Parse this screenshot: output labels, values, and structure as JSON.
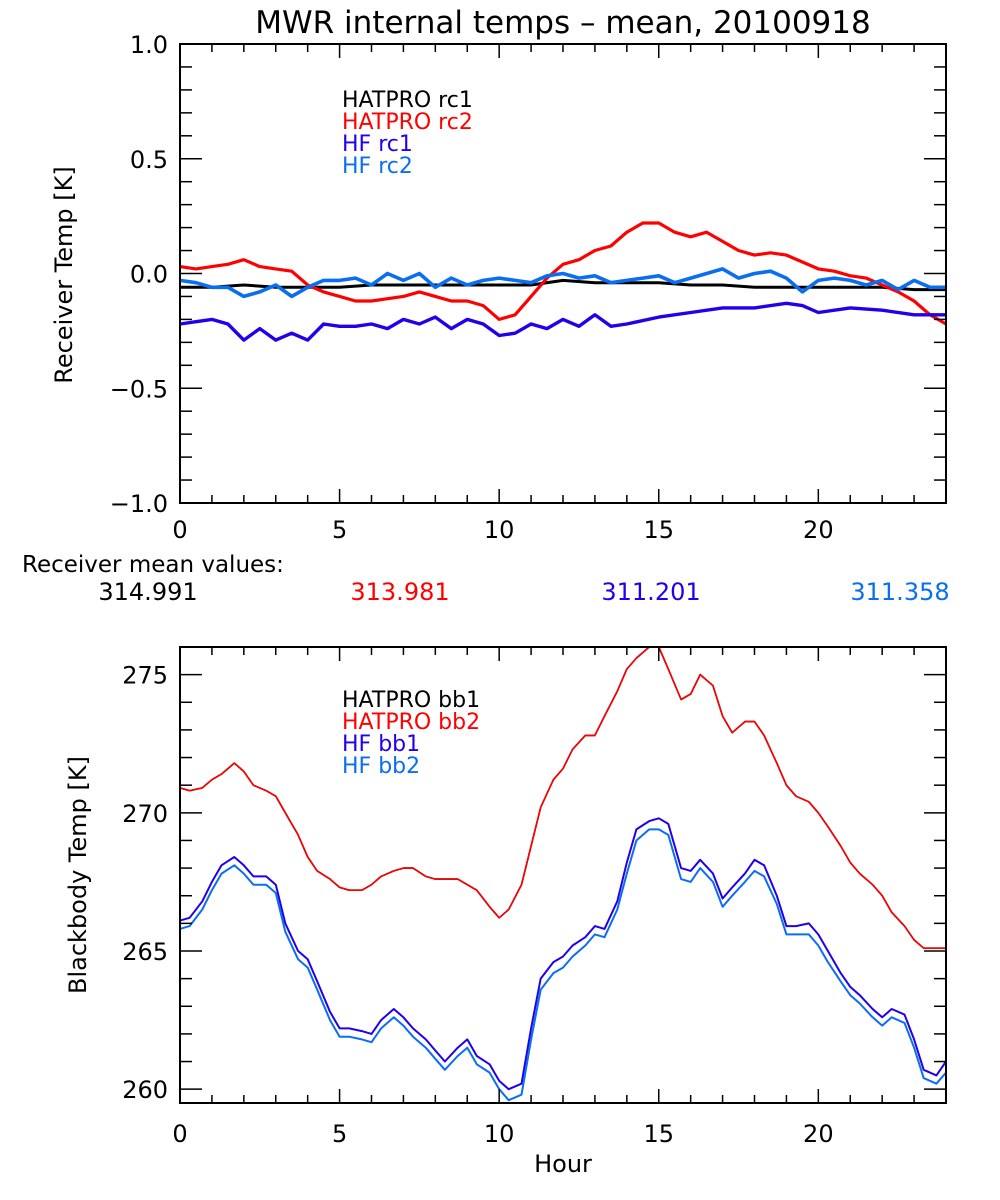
{
  "title": "MWR internal temps – mean, 20100918",
  "mean_values_label": "Receiver mean values:",
  "mean_values": [
    {
      "value": "314.991",
      "color": "#000000"
    },
    {
      "value": "313.981",
      "color": "#ff0000"
    },
    {
      "value": "311.201",
      "color": "#2200ee"
    },
    {
      "value": "311.358",
      "color": "#0a6ef0"
    }
  ],
  "chart_data": [
    {
      "type": "line",
      "title": "MWR internal temps – mean, 20100918",
      "xlabel": "",
      "ylabel": "Receiver Temp [K]",
      "xlim": [
        0,
        24
      ],
      "ylim": [
        -1.0,
        1.0
      ],
      "xticks": [
        0,
        5,
        10,
        15,
        20
      ],
      "xtick_labels": [
        "0",
        "5",
        "10",
        "15",
        "20"
      ],
      "yticks": [
        -1.0,
        -0.5,
        0.0,
        0.5,
        1.0
      ],
      "ytick_labels": [
        "−1.0",
        "−0.5",
        "0.0",
        "0.5",
        "1.0"
      ],
      "legend_position": "top-left",
      "grid": false,
      "series": [
        {
          "name": "HATPRO rc1",
          "color": "#000000",
          "x": [
            0,
            1,
            2,
            3,
            4,
            5,
            6,
            7,
            8,
            9,
            10,
            11,
            12,
            13,
            14,
            15,
            16,
            17,
            18,
            19,
            20,
            21,
            22,
            23,
            24
          ],
          "y": [
            -0.06,
            -0.06,
            -0.05,
            -0.06,
            -0.06,
            -0.06,
            -0.05,
            -0.05,
            -0.05,
            -0.05,
            -0.05,
            -0.05,
            -0.03,
            -0.04,
            -0.04,
            -0.04,
            -0.05,
            -0.05,
            -0.06,
            -0.06,
            -0.06,
            -0.06,
            -0.06,
            -0.07,
            -0.07
          ]
        },
        {
          "name": "HATPRO rc2",
          "color": "#ff0000",
          "x": [
            0,
            0.5,
            1,
            1.5,
            2,
            2.5,
            3,
            3.5,
            4,
            4.5,
            5,
            5.5,
            6,
            7,
            7.5,
            8,
            8.5,
            9,
            9.5,
            10,
            10.5,
            11,
            11.5,
            12,
            12.5,
            13,
            13.5,
            14,
            14.5,
            15,
            15.5,
            16,
            16.5,
            17,
            17.5,
            18,
            18.5,
            19,
            19.5,
            20,
            20.5,
            21,
            21.5,
            22,
            22.5,
            23,
            23.5,
            24
          ],
          "y": [
            0.03,
            0.02,
            0.03,
            0.04,
            0.06,
            0.03,
            0.02,
            0.01,
            -0.05,
            -0.08,
            -0.1,
            -0.12,
            -0.12,
            -0.1,
            -0.08,
            -0.1,
            -0.12,
            -0.12,
            -0.14,
            -0.2,
            -0.18,
            -0.1,
            -0.02,
            0.04,
            0.06,
            0.1,
            0.12,
            0.18,
            0.22,
            0.22,
            0.18,
            0.16,
            0.18,
            0.14,
            0.1,
            0.08,
            0.09,
            0.08,
            0.05,
            0.02,
            0.01,
            -0.01,
            -0.02,
            -0.05,
            -0.08,
            -0.12,
            -0.18,
            -0.22
          ]
        },
        {
          "name": "HF rc1",
          "color": "#2200ee",
          "x": [
            0,
            0.5,
            1,
            1.5,
            2,
            2.5,
            3,
            3.5,
            4,
            4.5,
            5,
            5.5,
            6,
            6.5,
            7,
            7.5,
            8,
            8.5,
            9,
            9.5,
            10,
            10.5,
            11,
            11.5,
            12,
            12.5,
            13,
            13.5,
            14,
            15,
            16,
            17,
            18,
            19,
            19.5,
            20,
            21,
            22,
            23,
            24
          ],
          "y": [
            -0.22,
            -0.21,
            -0.2,
            -0.22,
            -0.29,
            -0.24,
            -0.29,
            -0.26,
            -0.29,
            -0.22,
            -0.23,
            -0.23,
            -0.22,
            -0.24,
            -0.2,
            -0.22,
            -0.19,
            -0.24,
            -0.2,
            -0.22,
            -0.27,
            -0.26,
            -0.22,
            -0.24,
            -0.2,
            -0.23,
            -0.18,
            -0.23,
            -0.22,
            -0.19,
            -0.17,
            -0.15,
            -0.15,
            -0.13,
            -0.14,
            -0.17,
            -0.15,
            -0.16,
            -0.18,
            -0.18
          ]
        },
        {
          "name": "HF rc2",
          "color": "#0a6ef0",
          "x": [
            0,
            0.5,
            1,
            1.5,
            2,
            2.5,
            3,
            3.5,
            4,
            4.5,
            5,
            5.5,
            6,
            6.5,
            7,
            7.5,
            8,
            8.5,
            9,
            9.5,
            10,
            10.5,
            11,
            11.5,
            12,
            12.5,
            13,
            13.5,
            14,
            14.5,
            15,
            15.5,
            16,
            16.5,
            17,
            17.5,
            18,
            18.5,
            19,
            19.5,
            20,
            20.5,
            21,
            21.5,
            22,
            22.5,
            23,
            23.5,
            24
          ],
          "y": [
            -0.03,
            -0.04,
            -0.06,
            -0.06,
            -0.1,
            -0.08,
            -0.05,
            -0.1,
            -0.06,
            -0.03,
            -0.03,
            -0.02,
            -0.05,
            0.0,
            -0.03,
            0.0,
            -0.06,
            -0.02,
            -0.05,
            -0.03,
            -0.02,
            -0.03,
            -0.04,
            -0.01,
            0.0,
            -0.02,
            -0.01,
            -0.04,
            -0.03,
            -0.02,
            -0.01,
            -0.04,
            -0.02,
            0.0,
            0.02,
            -0.02,
            0.0,
            0.01,
            -0.02,
            -0.08,
            -0.03,
            -0.02,
            -0.03,
            -0.05,
            -0.03,
            -0.07,
            -0.03,
            -0.06,
            -0.06
          ]
        }
      ]
    },
    {
      "type": "line",
      "title": "",
      "xlabel": "Hour",
      "ylabel": "Blackbody Temp [K]",
      "xlim": [
        0,
        24
      ],
      "ylim": [
        259.5,
        276.0
      ],
      "xticks": [
        0,
        5,
        10,
        15,
        20
      ],
      "xtick_labels": [
        "0",
        "5",
        "10",
        "15",
        "20"
      ],
      "yticks": [
        260,
        265,
        270,
        275
      ],
      "ytick_labels": [
        "260",
        "265",
        "270",
        "275"
      ],
      "legend_position": "top-left",
      "grid": false,
      "series": [
        {
          "name": "HATPRO bb1",
          "color": "#000000",
          "x": [
            0,
            0.3,
            0.7,
            1.0,
            1.3,
            1.7,
            2.0,
            2.3,
            2.7,
            3.0,
            3.3,
            3.7,
            4.0,
            4.3,
            4.7,
            5.0,
            5.3,
            5.7,
            6.0,
            6.3,
            6.7,
            7.0,
            7.3,
            7.7,
            8.0,
            8.3,
            8.7,
            9.0,
            9.3,
            9.7,
            10.0,
            10.3,
            10.7,
            11.0,
            11.3,
            11.7,
            12.0,
            12.3,
            12.7,
            13.0,
            13.3,
            13.7,
            14.0,
            14.3,
            14.7,
            15.0,
            15.3,
            15.7,
            16.0,
            16.3,
            16.7,
            17.0,
            17.3,
            17.7,
            18.0,
            18.3,
            18.7,
            19.0,
            19.3,
            19.7,
            20.0,
            20.3,
            20.7,
            21.0,
            21.3,
            21.7,
            22.0,
            22.3,
            22.7,
            23.0,
            23.3,
            23.7,
            24.0
          ],
          "y": [
            270.9,
            270.8,
            270.9,
            271.2,
            271.4,
            271.8,
            271.5,
            271.0,
            270.8,
            270.6,
            270.0,
            269.2,
            268.4,
            267.9,
            267.6,
            267.3,
            267.2,
            267.2,
            267.4,
            267.7,
            267.9,
            268.0,
            268.0,
            267.7,
            267.6,
            267.6,
            267.6,
            267.4,
            267.2,
            266.6,
            266.2,
            266.5,
            267.4,
            268.8,
            270.2,
            271.2,
            271.6,
            272.3,
            272.8,
            272.8,
            273.5,
            274.4,
            275.2,
            275.6,
            276.0,
            276.0,
            275.2,
            274.1,
            274.3,
            275.0,
            274.6,
            273.5,
            272.9,
            273.3,
            273.3,
            272.8,
            271.8,
            271.0,
            270.6,
            270.4,
            270.0,
            269.5,
            268.8,
            268.2,
            267.8,
            267.4,
            267.0,
            266.4,
            265.9,
            265.4,
            265.1,
            265.1,
            265.1
          ]
        },
        {
          "name": "HATPRO bb2",
          "color": "#ff0000",
          "x": [
            0,
            0.3,
            0.7,
            1.0,
            1.3,
            1.7,
            2.0,
            2.3,
            2.7,
            3.0,
            3.3,
            3.7,
            4.0,
            4.3,
            4.7,
            5.0,
            5.3,
            5.7,
            6.0,
            6.3,
            6.7,
            7.0,
            7.3,
            7.7,
            8.0,
            8.3,
            8.7,
            9.0,
            9.3,
            9.7,
            10.0,
            10.3,
            10.7,
            11.0,
            11.3,
            11.7,
            12.0,
            12.3,
            12.7,
            13.0,
            13.3,
            13.7,
            14.0,
            14.3,
            14.7,
            15.0,
            15.3,
            15.7,
            16.0,
            16.3,
            16.7,
            17.0,
            17.3,
            17.7,
            18.0,
            18.3,
            18.7,
            19.0,
            19.3,
            19.7,
            20.0,
            20.3,
            20.7,
            21.0,
            21.3,
            21.7,
            22.0,
            22.3,
            22.7,
            23.0,
            23.3,
            23.7,
            24.0
          ],
          "y": [
            270.9,
            270.8,
            270.9,
            271.2,
            271.4,
            271.8,
            271.5,
            271.0,
            270.8,
            270.6,
            270.0,
            269.2,
            268.4,
            267.9,
            267.6,
            267.3,
            267.2,
            267.2,
            267.4,
            267.7,
            267.9,
            268.0,
            268.0,
            267.7,
            267.6,
            267.6,
            267.6,
            267.4,
            267.2,
            266.6,
            266.2,
            266.5,
            267.4,
            268.8,
            270.2,
            271.2,
            271.6,
            272.3,
            272.8,
            272.8,
            273.5,
            274.4,
            275.2,
            275.6,
            276.0,
            276.0,
            275.2,
            274.1,
            274.3,
            275.0,
            274.6,
            273.5,
            272.9,
            273.3,
            273.3,
            272.8,
            271.8,
            271.0,
            270.6,
            270.4,
            270.0,
            269.5,
            268.8,
            268.2,
            267.8,
            267.4,
            267.0,
            266.4,
            265.9,
            265.4,
            265.1,
            265.1,
            265.1
          ]
        },
        {
          "name": "HF bb1",
          "color": "#2200ee",
          "x": [
            0,
            0.3,
            0.7,
            1.0,
            1.3,
            1.7,
            2.0,
            2.3,
            2.7,
            3.0,
            3.3,
            3.7,
            4.0,
            4.3,
            4.7,
            5.0,
            5.3,
            5.7,
            6.0,
            6.3,
            6.7,
            7.0,
            7.3,
            7.7,
            8.0,
            8.3,
            8.7,
            9.0,
            9.3,
            9.7,
            10.0,
            10.3,
            10.7,
            11.0,
            11.3,
            11.7,
            12.0,
            12.3,
            12.7,
            13.0,
            13.3,
            13.7,
            14.0,
            14.3,
            14.7,
            15.0,
            15.3,
            15.7,
            16.0,
            16.3,
            16.7,
            17.0,
            17.3,
            17.7,
            18.0,
            18.3,
            18.7,
            19.0,
            19.3,
            19.7,
            20.0,
            20.3,
            20.7,
            21.0,
            21.3,
            21.7,
            22.0,
            22.3,
            22.7,
            23.0,
            23.3,
            23.7,
            24.0
          ],
          "y": [
            266.1,
            266.2,
            266.8,
            267.5,
            268.1,
            268.4,
            268.1,
            267.7,
            267.7,
            267.4,
            266.0,
            265.0,
            264.7,
            263.9,
            262.8,
            262.2,
            262.2,
            262.1,
            262.0,
            262.5,
            262.9,
            262.6,
            262.2,
            261.8,
            261.4,
            261.0,
            261.5,
            261.8,
            261.2,
            260.9,
            260.3,
            260.0,
            260.2,
            262.2,
            264.0,
            264.6,
            264.8,
            265.2,
            265.5,
            265.9,
            265.8,
            266.8,
            268.2,
            269.4,
            269.7,
            269.8,
            269.6,
            268.0,
            267.9,
            268.3,
            267.8,
            266.9,
            267.3,
            267.8,
            268.3,
            268.1,
            267.0,
            265.9,
            265.9,
            266.0,
            265.6,
            265.0,
            264.2,
            263.7,
            263.4,
            262.9,
            262.6,
            262.9,
            262.7,
            261.8,
            260.7,
            260.5,
            261.0
          ]
        },
        {
          "name": "HF bb2",
          "color": "#0a6ef0",
          "x": [
            0,
            0.3,
            0.7,
            1.0,
            1.3,
            1.7,
            2.0,
            2.3,
            2.7,
            3.0,
            3.3,
            3.7,
            4.0,
            4.3,
            4.7,
            5.0,
            5.3,
            5.7,
            6.0,
            6.3,
            6.7,
            7.0,
            7.3,
            7.7,
            8.0,
            8.3,
            8.7,
            9.0,
            9.3,
            9.7,
            10.0,
            10.3,
            10.7,
            11.0,
            11.3,
            11.7,
            12.0,
            12.3,
            12.7,
            13.0,
            13.3,
            13.7,
            14.0,
            14.3,
            14.7,
            15.0,
            15.3,
            15.7,
            16.0,
            16.3,
            16.7,
            17.0,
            17.3,
            17.7,
            18.0,
            18.3,
            18.7,
            19.0,
            19.3,
            19.7,
            20.0,
            20.3,
            20.7,
            21.0,
            21.3,
            21.7,
            22.0,
            22.3,
            22.7,
            23.0,
            23.3,
            23.7,
            24.0
          ],
          "y": [
            265.8,
            265.9,
            266.5,
            267.2,
            267.8,
            268.1,
            267.8,
            267.4,
            267.4,
            267.1,
            265.7,
            264.7,
            264.4,
            263.6,
            262.5,
            261.9,
            261.9,
            261.8,
            261.7,
            262.2,
            262.6,
            262.3,
            261.9,
            261.5,
            261.1,
            260.7,
            261.2,
            261.5,
            260.9,
            260.6,
            260.0,
            259.6,
            259.8,
            261.8,
            263.6,
            264.2,
            264.4,
            264.8,
            265.2,
            265.6,
            265.5,
            266.5,
            267.8,
            269.0,
            269.4,
            269.4,
            269.2,
            267.6,
            267.5,
            268.0,
            267.5,
            266.6,
            267.0,
            267.5,
            267.9,
            267.7,
            266.7,
            265.6,
            265.6,
            265.6,
            265.2,
            264.6,
            263.9,
            263.4,
            263.1,
            262.6,
            262.3,
            262.6,
            262.4,
            261.5,
            260.4,
            260.2,
            260.6
          ]
        }
      ]
    }
  ]
}
